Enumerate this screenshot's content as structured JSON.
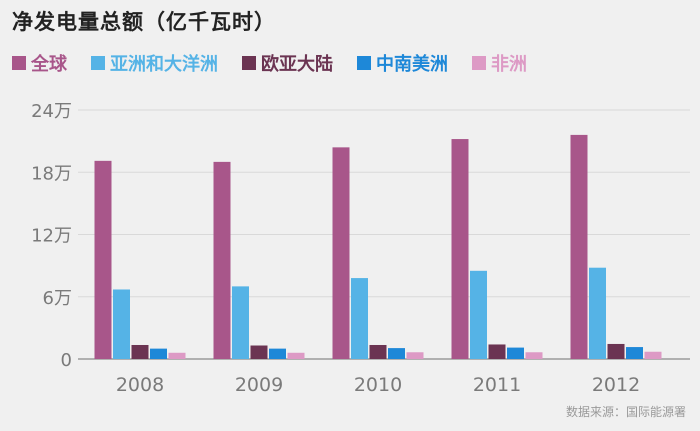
{
  "title": "净发电量总额（亿千瓦时）",
  "source": "数据来源：国际能源署",
  "chart_data": {
    "type": "bar",
    "categories": [
      "2008",
      "2009",
      "2010",
      "2011",
      "2012"
    ],
    "ylim": [
      0,
      24
    ],
    "yticks": [
      0,
      6,
      12,
      18,
      24
    ],
    "ytick_labels": [
      "0",
      "6万",
      "12万",
      "18万",
      "24万"
    ],
    "ylabel": "",
    "xlabel": "",
    "grid": true,
    "legend_position": "top-left",
    "series": [
      {
        "name": "全球",
        "color": "#a8568a",
        "values": [
          19.1,
          19.0,
          20.4,
          21.2,
          21.6
        ]
      },
      {
        "name": "亚洲和大洋洲",
        "color": "#55b3e6",
        "values": [
          6.7,
          7.0,
          7.8,
          8.5,
          8.8
        ]
      },
      {
        "name": "欧亚大陆",
        "color": "#6b3452",
        "values": [
          1.35,
          1.3,
          1.35,
          1.4,
          1.45
        ]
      },
      {
        "name": "中南美洲",
        "color": "#1e88d8",
        "values": [
          1.0,
          1.0,
          1.05,
          1.1,
          1.15
        ]
      },
      {
        "name": "非洲",
        "color": "#dd9ac5",
        "values": [
          0.6,
          0.6,
          0.65,
          0.65,
          0.7
        ]
      }
    ]
  }
}
